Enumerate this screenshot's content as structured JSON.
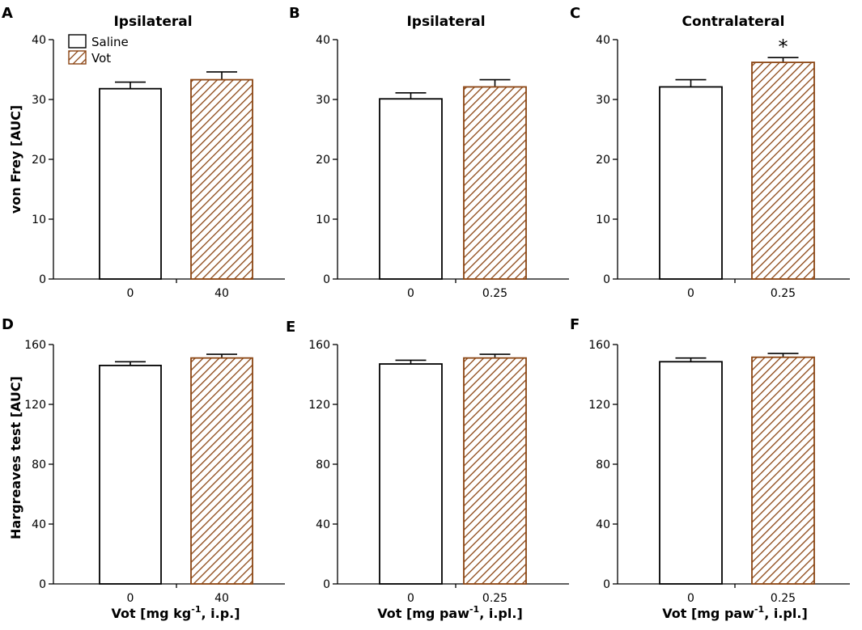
{
  "legend": {
    "entries": [
      {
        "label": "Saline",
        "style": "open"
      },
      {
        "label": "Vot",
        "style": "hatched"
      }
    ]
  },
  "colors": {
    "vot_edge": "#8B4513",
    "vot_hatch": "#8B4513",
    "saline_fill": "#ffffff",
    "axis": "#000000"
  },
  "row_labels": {
    "top_ylabel": "von Frey [AUC]",
    "bottom_ylabel": "Hargreaves test [AUC]",
    "xlabel_ip": "Vot [mg kg",
    "xlabel_ip_sup": "-1",
    "xlabel_ip_end": ", i.p.]",
    "xlabel_ipl": "Vot [mg paw",
    "xlabel_ipl_sup": "-1",
    "xlabel_ipl_end": ", i.pl.]"
  },
  "chart_data": [
    {
      "panel": "A",
      "title": "Ipsilateral",
      "type": "bar",
      "categories": [
        "0",
        "40"
      ],
      "values": [
        31.8,
        33.3
      ],
      "errors": [
        1.1,
        1.3
      ],
      "ylim": [
        0,
        40
      ],
      "yticks": [
        "0",
        "10",
        "20",
        "30",
        "40"
      ],
      "ylabel": "von Frey [AUC]",
      "significance": [
        "",
        ""
      ]
    },
    {
      "panel": "B",
      "title": "Ipsilateral",
      "type": "bar",
      "categories": [
        "0",
        "0.25"
      ],
      "values": [
        30.1,
        32.1
      ],
      "errors": [
        1.0,
        1.2
      ],
      "ylim": [
        0,
        40
      ],
      "yticks": [
        "0",
        "10",
        "20",
        "30",
        "40"
      ],
      "ylabel": "",
      "significance": [
        "",
        ""
      ]
    },
    {
      "panel": "C",
      "title": "Contralateral",
      "type": "bar",
      "categories": [
        "0",
        "0.25"
      ],
      "values": [
        32.1,
        36.2
      ],
      "errors": [
        1.2,
        0.8
      ],
      "ylim": [
        0,
        40
      ],
      "yticks": [
        "0",
        "10",
        "20",
        "30",
        "40"
      ],
      "ylabel": "",
      "significance": [
        "",
        "*"
      ]
    },
    {
      "panel": "D",
      "title": "",
      "type": "bar",
      "categories": [
        "0",
        "40"
      ],
      "values": [
        146,
        151
      ],
      "errors": [
        2.5,
        2.5
      ],
      "ylim": [
        0,
        160
      ],
      "yticks": [
        "0",
        "40",
        "80",
        "120",
        "160"
      ],
      "ylabel": "Hargreaves test [AUC]",
      "significance": [
        "",
        ""
      ]
    },
    {
      "panel": "E",
      "title": "",
      "type": "bar",
      "categories": [
        "0",
        "0.25"
      ],
      "values": [
        147,
        151
      ],
      "errors": [
        2.5,
        2.5
      ],
      "ylim": [
        0,
        160
      ],
      "yticks": [
        "0",
        "40",
        "80",
        "120",
        "160"
      ],
      "ylabel": "",
      "significance": [
        "",
        ""
      ]
    },
    {
      "panel": "F",
      "title": "",
      "type": "bar",
      "categories": [
        "0",
        "0.25"
      ],
      "values": [
        148.5,
        151.5
      ],
      "errors": [
        2.5,
        2.5
      ],
      "ylim": [
        0,
        160
      ],
      "yticks": [
        "0",
        "40",
        "80",
        "120",
        "160"
      ],
      "ylabel": "",
      "significance": [
        "",
        ""
      ]
    }
  ]
}
